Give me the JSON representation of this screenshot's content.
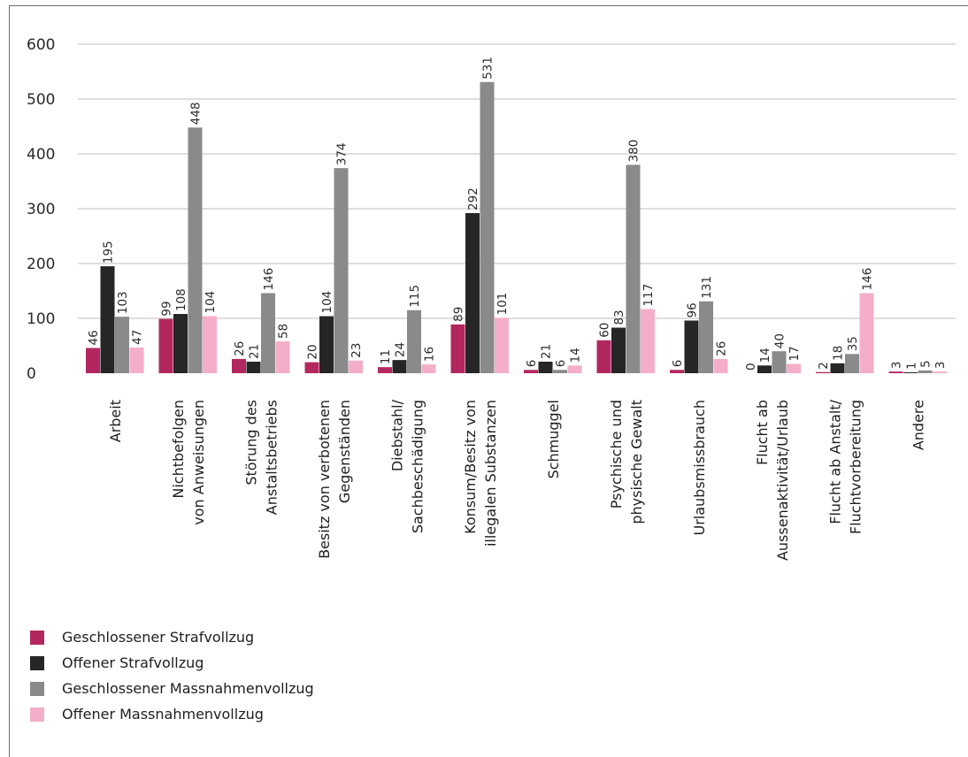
{
  "chart_data": {
    "type": "bar",
    "categories": [
      "Arbeit",
      "Nichtbefolgen\nvon Anweisungen",
      "Störung des\nAnstaltsbetriebs",
      "Besitz von verbotenen\nGegenständen",
      "Diebstahl/\nSachbeschädigung",
      "Konsum/Besitz von\nillegalen Substanzen",
      "Schmuggel",
      "Psychische und\nphysische Gewalt",
      "Urlaubsmissbrauch",
      "Flucht ab\nAussenaktivität/Urlaub",
      "Flucht ab Anstalt/\nFluchtvorbereitung",
      "Andere"
    ],
    "series": [
      {
        "name": "Geschlossener Strafvollzug",
        "color": "#b3275f",
        "values": [
          46,
          99,
          26,
          20,
          11,
          89,
          6,
          60,
          6,
          0,
          2,
          3
        ]
      },
      {
        "name": "Offener Strafvollzug",
        "color": "#262626",
        "values": [
          195,
          108,
          21,
          104,
          24,
          292,
          21,
          83,
          96,
          14,
          18,
          1
        ]
      },
      {
        "name": "Geschlossener Massnahmenvollzug",
        "color": "#8a8a8a",
        "values": [
          103,
          448,
          146,
          374,
          115,
          531,
          6,
          380,
          131,
          40,
          35,
          5
        ]
      },
      {
        "name": "Offener Massnahmenvollzug",
        "color": "#f4aec9",
        "values": [
          47,
          104,
          58,
          23,
          16,
          101,
          14,
          117,
          26,
          17,
          146,
          3
        ]
      }
    ],
    "ylim": [
      0,
      600
    ],
    "yticks": [
      0,
      100,
      200,
      300,
      400,
      500,
      600
    ],
    "grid": true,
    "gridColor": "#bdbdbd",
    "legend_position": "bottom-left"
  }
}
